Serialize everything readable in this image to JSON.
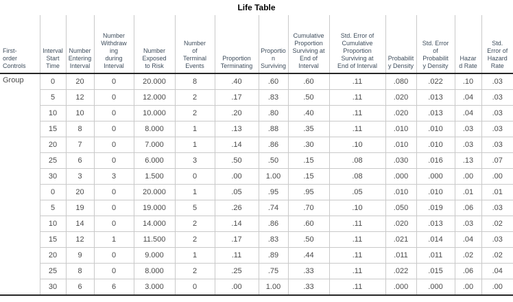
{
  "title": "Life Table",
  "table": {
    "group_label": "Group",
    "columns": [
      {
        "label": "First-\norder\nControls"
      },
      {
        "label": "Interval\nStart\nTime"
      },
      {
        "label": "Number\nEntering\nInterval"
      },
      {
        "label": "Number\nWithdraw\ning\nduring\nInterval"
      },
      {
        "label": "Number\nExposed\nto Risk"
      },
      {
        "label": "Number\nof\nTerminal\nEvents"
      },
      {
        "label": "Proportion\nTerminating"
      },
      {
        "label": "Proportio\nn\nSurviving"
      },
      {
        "label": "Cumulative\nProportion\nSurviving at\nEnd of\nInterval"
      },
      {
        "label": "Std. Error of\nCumulative\nProportion\nSurviving at\nEnd of Interval"
      },
      {
        "label": "Probabilit\ny Density"
      },
      {
        "label": "Std. Error\nof\nProbabilit\ny Density"
      },
      {
        "label": "Hazar\nd Rate"
      },
      {
        "label": "Std.\nError of\nHazard\nRate"
      }
    ],
    "rows": [
      [
        "0",
        "20",
        "0",
        "20.000",
        "8",
        ".40",
        ".60",
        ".60",
        ".11",
        ".080",
        ".022",
        ".10",
        ".03"
      ],
      [
        "5",
        "12",
        "0",
        "12.000",
        "2",
        ".17",
        ".83",
        ".50",
        ".11",
        ".020",
        ".013",
        ".04",
        ".03"
      ],
      [
        "10",
        "10",
        "0",
        "10.000",
        "2",
        ".20",
        ".80",
        ".40",
        ".11",
        ".020",
        ".013",
        ".04",
        ".03"
      ],
      [
        "15",
        "8",
        "0",
        "8.000",
        "1",
        ".13",
        ".88",
        ".35",
        ".11",
        ".010",
        ".010",
        ".03",
        ".03"
      ],
      [
        "20",
        "7",
        "0",
        "7.000",
        "1",
        ".14",
        ".86",
        ".30",
        ".10",
        ".010",
        ".010",
        ".03",
        ".03"
      ],
      [
        "25",
        "6",
        "0",
        "6.000",
        "3",
        ".50",
        ".50",
        ".15",
        ".08",
        ".030",
        ".016",
        ".13",
        ".07"
      ],
      [
        "30",
        "3",
        "3",
        "1.500",
        "0",
        ".00",
        "1.00",
        ".15",
        ".08",
        ".000",
        ".000",
        ".00",
        ".00"
      ],
      [
        "0",
        "20",
        "0",
        "20.000",
        "1",
        ".05",
        ".95",
        ".95",
        ".05",
        ".010",
        ".010",
        ".01",
        ".01"
      ],
      [
        "5",
        "19",
        "0",
        "19.000",
        "5",
        ".26",
        ".74",
        ".70",
        ".10",
        ".050",
        ".019",
        ".06",
        ".03"
      ],
      [
        "10",
        "14",
        "0",
        "14.000",
        "2",
        ".14",
        ".86",
        ".60",
        ".11",
        ".020",
        ".013",
        ".03",
        ".02"
      ],
      [
        "15",
        "12",
        "1",
        "11.500",
        "2",
        ".17",
        ".83",
        ".50",
        ".11",
        ".021",
        ".014",
        ".04",
        ".03"
      ],
      [
        "20",
        "9",
        "0",
        "9.000",
        "1",
        ".11",
        ".89",
        ".44",
        ".11",
        ".011",
        ".011",
        ".02",
        ".02"
      ],
      [
        "25",
        "8",
        "0",
        "8.000",
        "2",
        ".25",
        ".75",
        ".33",
        ".11",
        ".022",
        ".015",
        ".06",
        ".04"
      ],
      [
        "30",
        "6",
        "6",
        "3.000",
        "0",
        ".00",
        "1.00",
        ".33",
        ".11",
        ".000",
        ".000",
        ".00",
        ".00"
      ]
    ]
  }
}
